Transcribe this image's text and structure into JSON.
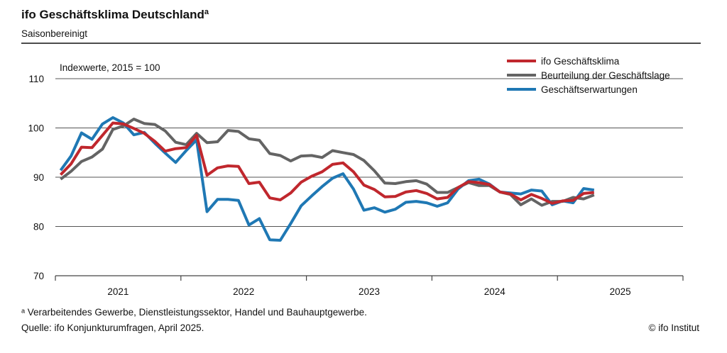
{
  "chart_data": {
    "type": "line",
    "title": "ifo Geschäftsklima Deutschland",
    "title_superscript": "a",
    "subtitle": "Saisonbereinigt",
    "annotation": "Indexwerte, 2015 = 100",
    "ylim": [
      70,
      110
    ],
    "yticks": [
      70,
      80,
      90,
      100,
      110
    ],
    "xticks": [
      "2021",
      "2022",
      "2023",
      "2024",
      "2025"
    ],
    "x_start": "2021-01",
    "x_end": "2025-04",
    "grid": true,
    "legend_position": "top-right",
    "series": [
      {
        "name": "ifo Geschäftsklima",
        "color": "#c0272d",
        "values": [
          90.5,
          92.7,
          96.1,
          96.0,
          98.5,
          101.0,
          100.8,
          99.9,
          98.9,
          97.3,
          95.3,
          95.8,
          96.0,
          98.5,
          90.4,
          91.9,
          92.3,
          92.2,
          88.7,
          89.0,
          85.8,
          85.4,
          86.8,
          89.0,
          90.2,
          91.1,
          92.6,
          92.9,
          91.1,
          88.4,
          87.5,
          86.0,
          86.1,
          87.0,
          87.3,
          86.7,
          85.6,
          85.9,
          87.9,
          89.1,
          88.9,
          88.5,
          87.0,
          86.6,
          85.4,
          86.5,
          85.7,
          84.7,
          85.2,
          85.3,
          86.7,
          86.9
        ]
      },
      {
        "name": "Beurteilung der Geschäftslage",
        "color": "#646464",
        "values": [
          89.6,
          91.2,
          93.2,
          94.1,
          95.7,
          99.7,
          100.4,
          101.8,
          100.9,
          100.7,
          99.4,
          97.1,
          96.6,
          98.9,
          97.0,
          97.2,
          99.5,
          99.3,
          97.8,
          97.5,
          94.8,
          94.4,
          93.3,
          94.3,
          94.4,
          94.0,
          95.4,
          95.0,
          94.6,
          93.4,
          91.3,
          88.8,
          88.7,
          89.1,
          89.3,
          88.6,
          86.9,
          86.9,
          87.9,
          88.9,
          88.3,
          88.3,
          87.0,
          86.5,
          84.4,
          85.6,
          84.3,
          85.1,
          85.1,
          85.9,
          85.6,
          86.4
        ]
      },
      {
        "name": "Geschäftserwartungen",
        "color": "#1f78b4",
        "values": [
          91.4,
          94.3,
          99.0,
          97.7,
          100.8,
          102.1,
          101.0,
          98.6,
          99.1,
          96.9,
          94.9,
          93.0,
          95.4,
          97.6,
          83.0,
          85.5,
          85.5,
          85.3,
          80.3,
          81.6,
          77.3,
          77.2,
          80.6,
          84.2,
          86.2,
          88.1,
          89.8,
          90.7,
          87.6,
          83.3,
          83.8,
          82.9,
          83.5,
          84.9,
          85.1,
          84.8,
          84.1,
          84.8,
          87.6,
          89.3,
          89.6,
          88.6,
          87.0,
          86.8,
          86.6,
          87.4,
          87.2,
          84.4,
          85.2,
          84.8,
          87.7,
          87.4
        ]
      }
    ]
  },
  "footnote": "ᵃ Verarbeitendes Gewerbe, Dienstleistungssektor, Handel und Bauhauptgewerbe.",
  "source": "Quelle: ifo Konjunkturumfragen, April 2025.",
  "copyright": "© ifo Institut"
}
